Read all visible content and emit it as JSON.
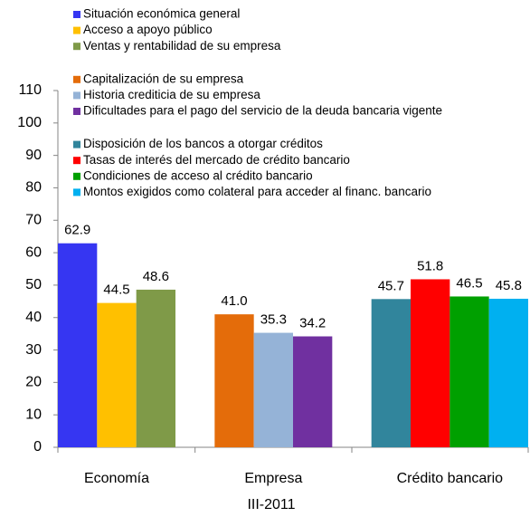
{
  "chart_data": {
    "type": "bar",
    "xlabel": "III-2011",
    "categories": [
      "Economía",
      "Empresa",
      "Crédito bancario"
    ],
    "ylim": [
      0,
      110
    ],
    "yticks": [
      0,
      10,
      20,
      30,
      40,
      50,
      60,
      70,
      80,
      90,
      100,
      110
    ],
    "series": [
      {
        "name": "Situación económica general",
        "color": "#3636f2",
        "values": [
          62.9,
          null,
          null
        ]
      },
      {
        "name": "Acceso a apoyo público",
        "color": "#ffc000",
        "values": [
          44.5,
          null,
          null
        ]
      },
      {
        "name": "Ventas y rentabilidad de su empresa",
        "color": "#7f9a48",
        "values": [
          48.6,
          null,
          null
        ]
      },
      {
        "name": "Capitalización de su empresa",
        "color": "#e46c0a",
        "values": [
          null,
          41,
          null
        ],
        "value_labels": [
          null,
          "41.0",
          null
        ]
      },
      {
        "name": "Historia crediticia de su empresa",
        "color": "#95b3d7",
        "values": [
          null,
          35.3,
          null
        ]
      },
      {
        "name": "Dificultades para el pago del servicio de la deuda bancaria vigente",
        "color": "#7030a0",
        "values": [
          null,
          34.2,
          null
        ]
      },
      {
        "name": "Disposición de los bancos a otorgar créditos",
        "color": "#31859c",
        "values": [
          null,
          null,
          45.7
        ]
      },
      {
        "name": "Tasas de interés del mercado de crédito bancario",
        "color": "#ff0000",
        "values": [
          null,
          null,
          51.8
        ]
      },
      {
        "name": "Condiciones de acceso al crédito bancario",
        "color": "#00a000",
        "values": [
          null,
          null,
          46.5
        ]
      },
      {
        "name": "Montos exigidos como colateral para acceder al financ.  bancario",
        "color": "#00b0f0",
        "values": [
          null,
          null,
          45.8
        ]
      }
    ]
  }
}
